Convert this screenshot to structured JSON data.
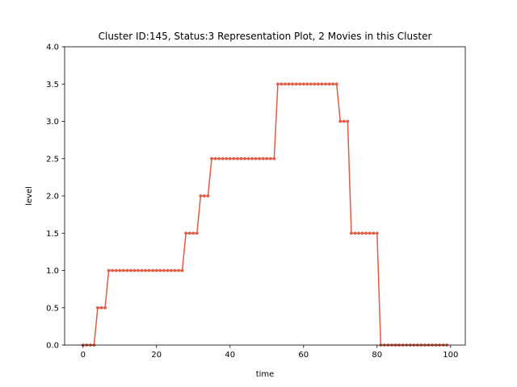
{
  "chart_data": {
    "type": "line",
    "title": "Cluster ID:145, Status:3 Representation Plot, 2 Movies in this Cluster",
    "xlabel": "time",
    "ylabel": "level",
    "xlim": [
      -5,
      104
    ],
    "ylim": [
      0,
      4
    ],
    "xticks": [
      0,
      20,
      40,
      60,
      80,
      100
    ],
    "yticks": [
      0.0,
      0.5,
      1.0,
      1.5,
      2.0,
      2.5,
      3.0,
      3.5,
      4.0
    ],
    "xtick_labels": [
      "0",
      "20",
      "40",
      "60",
      "80",
      "100"
    ],
    "ytick_labels": [
      "0.0",
      "0.5",
      "1.0",
      "1.5",
      "2.0",
      "2.5",
      "3.0",
      "3.5",
      "4.0"
    ],
    "grid": false,
    "legend": "none",
    "series": [
      {
        "color": "#e05c45",
        "x": [
          0,
          1,
          2,
          3,
          4,
          5,
          6,
          7,
          8,
          9,
          10,
          11,
          12,
          13,
          14,
          15,
          16,
          17,
          18,
          19,
          20,
          21,
          22,
          23,
          24,
          25,
          26,
          27,
          28,
          29,
          30,
          31,
          32,
          33,
          34,
          35,
          36,
          37,
          38,
          39,
          40,
          41,
          42,
          43,
          44,
          45,
          46,
          47,
          48,
          49,
          50,
          51,
          52,
          53,
          54,
          55,
          56,
          57,
          58,
          59,
          60,
          61,
          62,
          63,
          64,
          65,
          66,
          67,
          68,
          69,
          70,
          71,
          72,
          73,
          74,
          75,
          76,
          77,
          78,
          79,
          80,
          81,
          82,
          83,
          84,
          85,
          86,
          87,
          88,
          89,
          90,
          91,
          92,
          93,
          94,
          95,
          96,
          97,
          98,
          99
        ],
        "y": [
          0,
          0,
          0,
          0,
          0.5,
          0.5,
          0.5,
          1,
          1,
          1,
          1,
          1,
          1,
          1,
          1,
          1,
          1,
          1,
          1,
          1,
          1,
          1,
          1,
          1,
          1,
          1,
          1,
          1,
          1.5,
          1.5,
          1.5,
          1.5,
          2,
          2,
          2,
          2.5,
          2.5,
          2.5,
          2.5,
          2.5,
          2.5,
          2.5,
          2.5,
          2.5,
          2.5,
          2.5,
          2.5,
          2.5,
          2.5,
          2.5,
          2.5,
          2.5,
          2.5,
          3.5,
          3.5,
          3.5,
          3.5,
          3.5,
          3.5,
          3.5,
          3.5,
          3.5,
          3.5,
          3.5,
          3.5,
          3.5,
          3.5,
          3.5,
          3.5,
          3.5,
          3,
          3,
          3,
          1.5,
          1.5,
          1.5,
          1.5,
          1.5,
          1.5,
          1.5,
          1.5,
          0,
          0,
          0,
          0,
          0,
          0,
          0,
          0,
          0,
          0,
          0,
          0,
          0,
          0,
          0,
          0,
          0,
          0,
          0
        ]
      }
    ]
  }
}
